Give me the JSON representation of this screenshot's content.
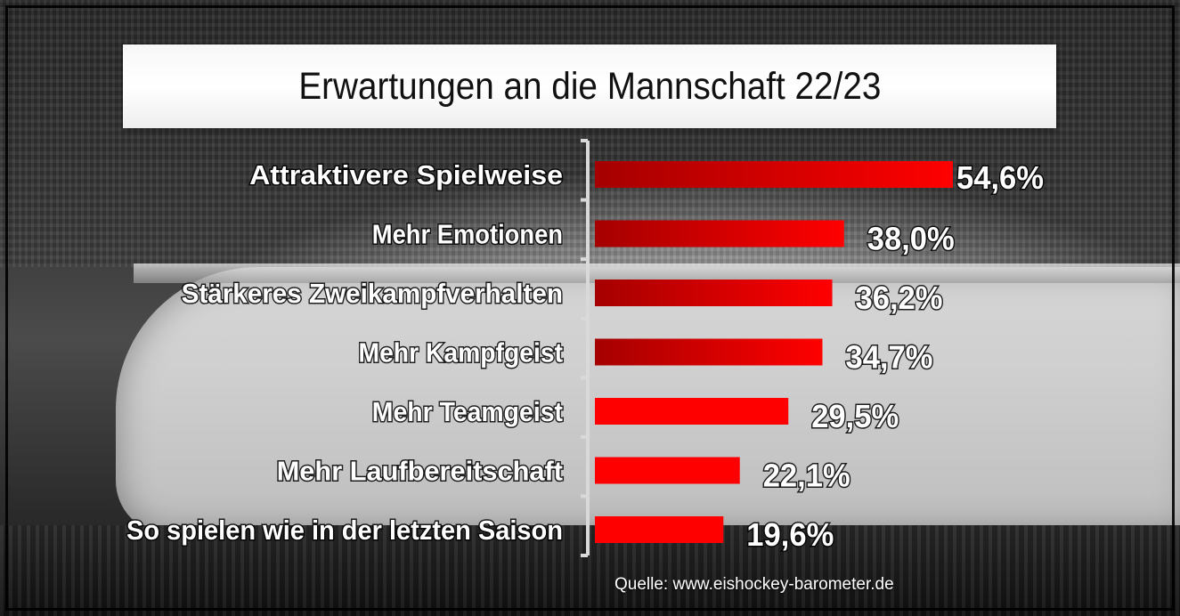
{
  "source_label": "Quelle: www.eishockey-barometer.de",
  "colors": {
    "bar_dark": "#a50000",
    "bar_bright": "#ff0000",
    "axis": "#d9d9d9",
    "banner_bg": "#ffffff"
  },
  "chart_data": {
    "type": "bar",
    "orientation": "horizontal",
    "title": "Erwartungen an die Mannschaft 22/23",
    "xlabel": "",
    "ylabel": "",
    "unit": "%",
    "grid": false,
    "legend": "none",
    "xlim": [
      0,
      54.6
    ],
    "categories": [
      "Attraktivere Spielweise",
      "Mehr Emotionen",
      "Stärkeres Zweikampfverhalten",
      "Mehr Kampfgeist",
      "Mehr Teamgeist",
      "Mehr Laufbereitschaft",
      "So spielen wie in der letzten Saison"
    ],
    "values": [
      54.6,
      38.0,
      36.2,
      34.7,
      29.5,
      22.1,
      19.6
    ],
    "value_labels": [
      "54,6%",
      "38,0%",
      "36,2%",
      "34,7%",
      "29,5%",
      "22,1%",
      "19,6%"
    ]
  }
}
